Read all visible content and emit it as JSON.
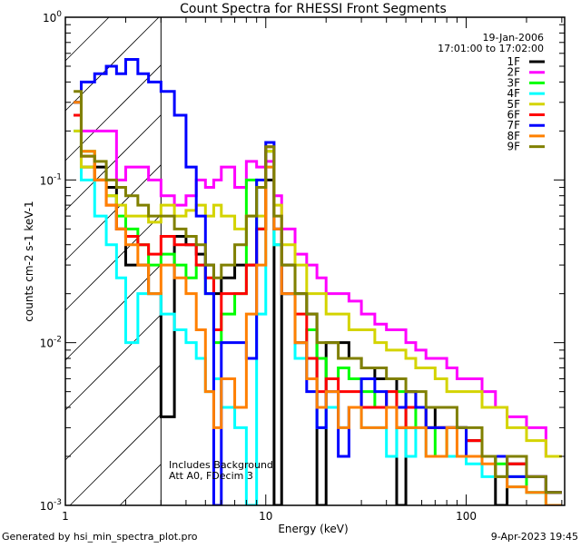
{
  "chart_data": {
    "type": "line",
    "title": "Count Spectra for RHESSI Front Segments",
    "xlabel": "Energy (keV)",
    "ylabel": "counts cm-2 s-1 keV-1",
    "xscale": "log",
    "yscale": "log",
    "xlim": [
      1,
      310
    ],
    "ylim": [
      0.001,
      1
    ],
    "x_ticks": [
      {
        "v": 1,
        "label": "1"
      },
      {
        "v": 10,
        "label": "10"
      },
      {
        "v": 100,
        "label": "100"
      }
    ],
    "y_ticks": [
      {
        "v": 0.001,
        "base": "10",
        "exp": "-3"
      },
      {
        "v": 0.01,
        "base": "10",
        "exp": "-2"
      },
      {
        "v": 0.1,
        "base": "10",
        "exp": "-1"
      },
      {
        "v": 1,
        "base": "10",
        "exp": "0"
      }
    ],
    "annotations": {
      "date": "19-Jan-2006",
      "time_range": "17:01:00 to 17:02:00",
      "note1": "Includes Background",
      "note2": "Att A0, FDecim 3"
    },
    "hatched_region_kev": [
      1,
      3
    ],
    "legend_position": "top-right",
    "energy_edges": [
      1.1,
      1.2,
      1.4,
      1.6,
      1.8,
      2.0,
      2.3,
      2.6,
      3.0,
      3.5,
      4,
      4.5,
      5,
      5.5,
      6,
      7,
      8,
      9,
      10,
      11,
      12,
      14,
      16,
      18,
      20,
      23,
      26,
      30,
      35,
      40,
      45,
      50,
      56,
      63,
      70,
      80,
      90,
      100,
      120,
      140,
      160,
      200,
      250,
      300
    ],
    "series": [
      {
        "name": "1F",
        "color": "#000000",
        "values": [
          0.25,
          0.12,
          0.12,
          0.09,
          0.05,
          0.03,
          0.03,
          0.02,
          0.0035,
          0.045,
          0.04,
          0.035,
          0.03,
          0.02,
          0.025,
          0.03,
          0.03,
          0.05,
          0.1,
          0.001,
          0.03,
          0.02,
          0.015,
          0.001,
          0.01,
          0.01,
          0.008,
          0.007,
          0.006,
          0.006,
          0.001,
          0.005,
          0.004,
          0.004,
          0.003,
          0.003,
          0.003,
          0.0025,
          0.002,
          0.001,
          0.0018,
          0.0015,
          0.0012
        ]
      },
      {
        "name": "2F",
        "color": "#ff00ff",
        "values": [
          0.3,
          0.2,
          0.2,
          0.2,
          0.1,
          0.12,
          0.12,
          0.1,
          0.08,
          0.07,
          0.08,
          0.1,
          0.09,
          0.1,
          0.12,
          0.09,
          0.13,
          0.12,
          0.13,
          0.08,
          0.05,
          0.035,
          0.03,
          0.025,
          0.02,
          0.02,
          0.018,
          0.015,
          0.013,
          0.012,
          0.012,
          0.01,
          0.009,
          0.008,
          0.008,
          0.007,
          0.006,
          0.006,
          0.005,
          0.004,
          0.0035,
          0.003,
          0.002
        ]
      },
      {
        "name": "3F",
        "color": "#00ff00",
        "values": [
          0.3,
          0.15,
          0.1,
          0.08,
          0.06,
          0.05,
          0.04,
          0.03,
          0.035,
          0.03,
          0.025,
          0.03,
          0.02,
          0.01,
          0.015,
          0.02,
          0.1,
          0.05,
          0.15,
          0.04,
          0.02,
          0.01,
          0.012,
          0.008,
          0.006,
          0.007,
          0.006,
          0.005,
          0.004,
          0.004,
          0.005,
          0.003,
          0.004,
          0.003,
          0.002,
          0.003,
          0.003,
          0.002,
          0.002,
          0.0018,
          0.0015,
          0.0012,
          0.001
        ]
      },
      {
        "name": "4F",
        "color": "#00ffff",
        "values": [
          0.2,
          0.1,
          0.06,
          0.04,
          0.025,
          0.01,
          0.02,
          0.02,
          0.015,
          0.012,
          0.01,
          0.008,
          0.005,
          0.006,
          0.004,
          0.003,
          0.001,
          0.015,
          0.12,
          0.04,
          0.02,
          0.008,
          0.006,
          0.003,
          0.004,
          0.003,
          0.004,
          0.003,
          0.003,
          0.002,
          0.003,
          0.002,
          0.003,
          0.002,
          0.002,
          0.002,
          0.002,
          0.0018,
          0.0015,
          0.0015,
          0.0013,
          0.0012,
          0.001
        ]
      },
      {
        "name": "5F",
        "color": "#d4d400",
        "values": [
          0.2,
          0.12,
          0.1,
          0.08,
          0.07,
          0.06,
          0.06,
          0.055,
          0.07,
          0.06,
          0.065,
          0.07,
          0.06,
          0.07,
          0.06,
          0.05,
          0.06,
          0.06,
          0.15,
          0.07,
          0.04,
          0.03,
          0.02,
          0.02,
          0.015,
          0.015,
          0.012,
          0.012,
          0.01,
          0.009,
          0.009,
          0.008,
          0.007,
          0.007,
          0.006,
          0.005,
          0.005,
          0.005,
          0.004,
          0.004,
          0.003,
          0.0025,
          0.002
        ]
      },
      {
        "name": "6F",
        "color": "#ff0000",
        "values": [
          0.25,
          0.14,
          0.1,
          0.07,
          0.05,
          0.045,
          0.04,
          0.035,
          0.045,
          0.04,
          0.04,
          0.03,
          0.025,
          0.012,
          0.02,
          0.02,
          0.03,
          0.05,
          0.16,
          0.05,
          0.02,
          0.015,
          0.008,
          0.005,
          0.006,
          0.005,
          0.005,
          0.004,
          0.004,
          0.005,
          0.003,
          0.004,
          0.004,
          0.003,
          0.003,
          0.003,
          0.003,
          0.0025,
          0.002,
          0.002,
          0.0018,
          0.0015,
          0.0012
        ]
      },
      {
        "name": "7F",
        "color": "#0000ff",
        "values": [
          0.3,
          0.4,
          0.45,
          0.5,
          0.45,
          0.55,
          0.45,
          0.4,
          0.35,
          0.25,
          0.12,
          0.06,
          0.02,
          0.001,
          0.01,
          0.01,
          0.008,
          0.1,
          0.17,
          0.05,
          0.02,
          0.01,
          0.005,
          0.003,
          0.005,
          0.002,
          0.004,
          0.006,
          0.005,
          0.004,
          0.004,
          0.005,
          0.004,
          0.003,
          0.003,
          0.003,
          0.003,
          0.002,
          0.002,
          0.002,
          0.0015,
          0.0015,
          0.0012
        ]
      },
      {
        "name": "8F",
        "color": "#ff8000",
        "values": [
          0.3,
          0.15,
          0.1,
          0.07,
          0.05,
          0.04,
          0.03,
          0.02,
          0.03,
          0.025,
          0.02,
          0.012,
          0.005,
          0.003,
          0.006,
          0.004,
          0.015,
          0.03,
          0.12,
          0.05,
          0.02,
          0.01,
          0.006,
          0.004,
          0.005,
          0.003,
          0.004,
          0.003,
          0.003,
          0.004,
          0.003,
          0.003,
          0.003,
          0.002,
          0.002,
          0.003,
          0.002,
          0.002,
          0.0018,
          0.0015,
          0.0013,
          0.0012,
          0.001
        ]
      },
      {
        "name": "9F",
        "color": "#808000",
        "values": [
          0.35,
          0.14,
          0.13,
          0.1,
          0.09,
          0.08,
          0.07,
          0.06,
          0.06,
          0.05,
          0.045,
          0.04,
          0.03,
          0.025,
          0.03,
          0.04,
          0.06,
          0.09,
          0.16,
          0.06,
          0.03,
          0.02,
          0.015,
          0.01,
          0.01,
          0.008,
          0.008,
          0.007,
          0.007,
          0.006,
          0.006,
          0.005,
          0.005,
          0.004,
          0.004,
          0.004,
          0.003,
          0.003,
          0.002,
          0.0015,
          0.002,
          0.0015,
          0.0012
        ]
      }
    ]
  },
  "footer": {
    "generated": "Generated by hsi_min_spectra_plot.pro",
    "timestamp": "9-Apr-2023 19:45"
  }
}
